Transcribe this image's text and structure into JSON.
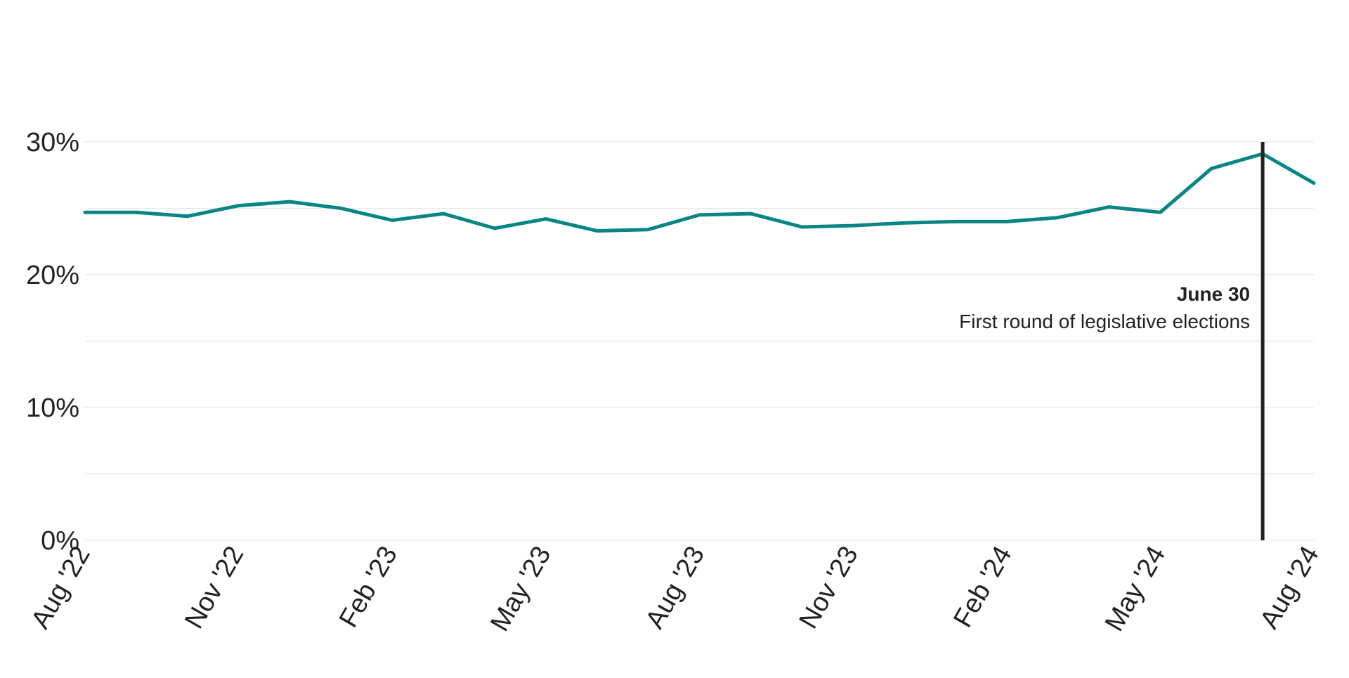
{
  "chart_data": {
    "type": "line",
    "x": [
      "2022-08",
      "2022-09",
      "2022-10",
      "2022-11",
      "2022-12",
      "2023-01",
      "2023-02",
      "2023-03",
      "2023-04",
      "2023-05",
      "2023-06",
      "2023-07",
      "2023-08",
      "2023-09",
      "2023-10",
      "2023-11",
      "2023-12",
      "2024-01",
      "2024-02",
      "2024-03",
      "2024-04",
      "2024-05",
      "2024-06",
      "2024-07",
      "2024-08"
    ],
    "series": [
      {
        "color": "#0a8585",
        "values": [
          24.7,
          24.7,
          24.4,
          25.2,
          25.5,
          25.0,
          24.1,
          24.6,
          23.5,
          24.2,
          23.3,
          23.4,
          24.5,
          24.6,
          23.6,
          23.7,
          23.9,
          24.0,
          24.0,
          24.3,
          25.1,
          24.7,
          28.0,
          29.1,
          26.9
        ]
      }
    ],
    "ylim": [
      0,
      30
    ],
    "yticks": [
      {
        "value": 0,
        "label": "0%"
      },
      {
        "value": 10,
        "label": "10%"
      },
      {
        "value": 20,
        "label": "20%"
      },
      {
        "value": 30,
        "label": "30%"
      }
    ],
    "grid_values": [
      0,
      5,
      10,
      15,
      20,
      25,
      30
    ],
    "xticks": [
      {
        "x": "2022-08",
        "label": "Aug '22"
      },
      {
        "x": "2022-11",
        "label": "Nov '22"
      },
      {
        "x": "2023-02",
        "label": "Feb '23"
      },
      {
        "x": "2023-05",
        "label": "May '23"
      },
      {
        "x": "2023-08",
        "label": "Aug '23"
      },
      {
        "x": "2023-11",
        "label": "Nov '23"
      },
      {
        "x": "2024-02",
        "label": "Feb '24"
      },
      {
        "x": "2024-05",
        "label": "May '24"
      },
      {
        "x": "2024-08",
        "label": "Aug '24"
      }
    ],
    "grid": true,
    "legend": "none",
    "annotations": [
      {
        "x": "2024-07",
        "date_label": "June 30",
        "text": "First round of legislative elections",
        "color": "#222222"
      }
    ]
  }
}
